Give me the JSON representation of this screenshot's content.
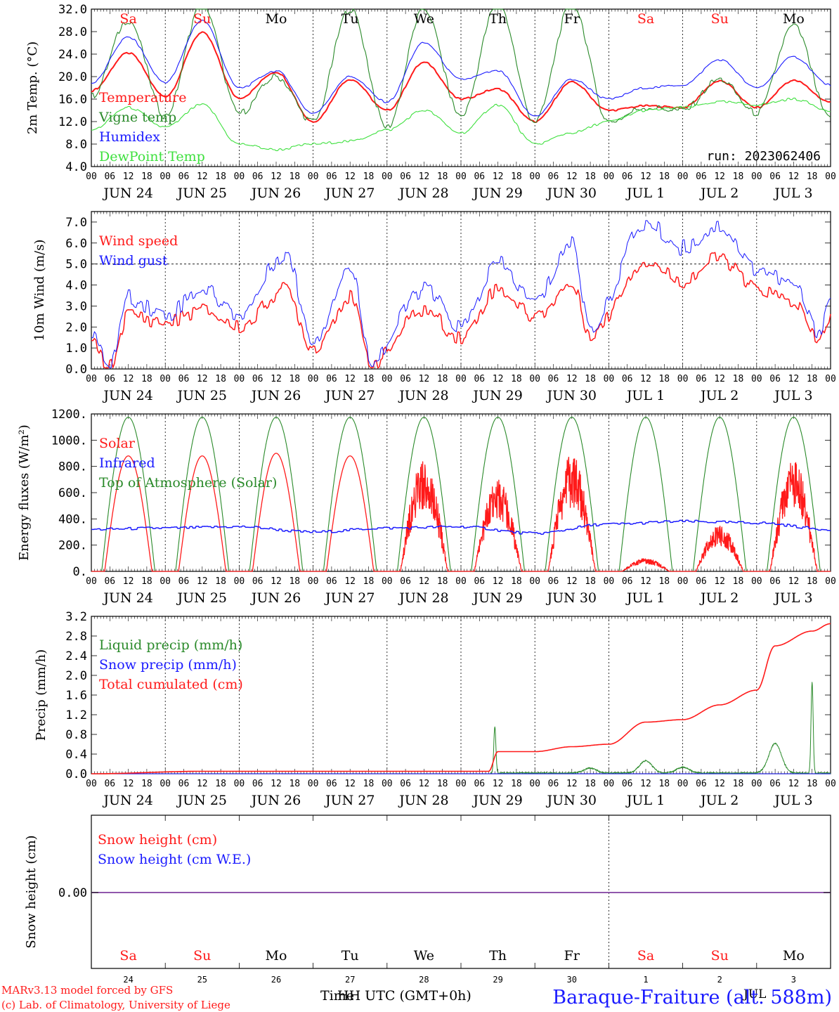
{
  "colors": {
    "red": "#ff1a1a",
    "green": "#2a8a2a",
    "blue": "#1a1aff",
    "lightgreen": "#3ee03e",
    "purple": "#8040a0",
    "axis": "#000000"
  },
  "x_axis": {
    "hour_labels": [
      "00",
      "06",
      "12",
      "18"
    ],
    "last_tick_label": "00",
    "date_labels": [
      "JUN 24",
      "JUN 25",
      "JUN 26",
      "JUN 27",
      "JUN 28",
      "JUN 29",
      "JUN 30",
      "JUL  1",
      "JUL  2",
      "JUL  3"
    ],
    "weekday_labels": [
      "Sa",
      "Su",
      "Mo",
      "Tu",
      "We",
      "Th",
      "Fr",
      "Sa",
      "Su",
      "Mo"
    ],
    "weekend_flags": [
      true,
      true,
      false,
      false,
      false,
      false,
      false,
      true,
      true,
      false
    ],
    "day_numbers": [
      "24",
      "25",
      "26",
      "27",
      "28",
      "29",
      "30",
      "1",
      "2",
      "3"
    ]
  },
  "footer": {
    "credit_line1": "MARv3.13 model forced by GFS",
    "credit_line2": "(c) Lab. of Climatology, University of Liege",
    "time_label": "Time",
    "utc_label": "HH UTC (GMT+0h)",
    "jul_label": "JUL",
    "station": "Baraque-Fraiture (alt. 588m)"
  },
  "chart_data": [
    {
      "type": "line",
      "ylabel": "2m Temp. (°C)",
      "ylim": [
        4,
        32
      ],
      "yticks": [
        "4.0",
        "8.0",
        "12.0",
        "16.0",
        "20.0",
        "24.0",
        "28.0",
        "32.0"
      ],
      "run_label": "run: 2023062406",
      "x": [
        "06-24 00",
        "06-24 12",
        "06-25 00",
        "06-25 12",
        "06-26 00",
        "06-26 12",
        "06-27 00",
        "06-27 12",
        "06-28 00",
        "06-28 12",
        "06-29 00",
        "06-29 12",
        "06-30 00",
        "06-30 12",
        "07-01 00",
        "07-01 12",
        "07-02 00",
        "07-02 12",
        "07-03 00",
        "07-03 12",
        "07-04 00"
      ],
      "series": [
        {
          "name": "Temperature",
          "color": "red",
          "values": [
            17.5,
            24.2,
            16.5,
            27.8,
            16.2,
            20.8,
            12.0,
            19.5,
            14.0,
            22.5,
            16.0,
            17.8,
            12.0,
            19.0,
            14.0,
            14.8,
            14.5,
            19.2,
            14.5,
            19.3,
            15.5
          ]
        },
        {
          "name": "Vigne temp",
          "color": "green",
          "values": [
            16.5,
            30.0,
            13.0,
            33.0,
            13.5,
            20.0,
            12.0,
            32.0,
            11.0,
            32.0,
            13.0,
            33.0,
            12.0,
            33.0,
            12.0,
            14.5,
            14.0,
            19.5,
            13.5,
            29.0,
            12.5
          ]
        },
        {
          "name": "Humidex",
          "color": "blue",
          "values": [
            18.8,
            27.0,
            19.0,
            30.0,
            18.0,
            21.0,
            13.5,
            20.0,
            15.5,
            26.0,
            19.5,
            21.0,
            13.0,
            19.5,
            16.0,
            18.0,
            18.5,
            23.0,
            18.0,
            23.5,
            18.5
          ]
        },
        {
          "name": "DewPoint Temp",
          "color": "lightgreen",
          "values": [
            10.5,
            14.5,
            11.0,
            15.0,
            8.0,
            7.0,
            8.0,
            8.5,
            10.5,
            14.0,
            10.0,
            15.0,
            8.0,
            10.0,
            12.0,
            14.0,
            14.5,
            15.5,
            15.0,
            16.0,
            14.0
          ]
        }
      ]
    },
    {
      "type": "line",
      "ylabel": "10m Wind (m/s)",
      "ylim": [
        0,
        7.5
      ],
      "yticks": [
        "0.0",
        "1.0",
        "2.0",
        "3.0",
        "4.0",
        "5.0",
        "6.0",
        "7.0"
      ],
      "ref_line": 5.0,
      "x": [
        "06-24 00",
        "06-24 06",
        "06-24 12",
        "06-25 00",
        "06-25 12",
        "06-26 00",
        "06-26 15",
        "06-27 00",
        "06-27 12",
        "06-27 19",
        "06-28 12",
        "06-29 00",
        "06-29 12",
        "06-30 00",
        "06-30 12",
        "06-30 18",
        "07-01 12",
        "07-02 00",
        "07-02 12",
        "07-03 00",
        "07-03 12",
        "07-03 20",
        "07-04 00"
      ],
      "series": [
        {
          "name": "Wind speed",
          "color": "red",
          "values": [
            1.2,
            0.1,
            2.6,
            2.2,
            2.8,
            2.0,
            3.8,
            1.0,
            3.4,
            0.3,
            2.8,
            1.5,
            3.8,
            2.5,
            4.0,
            1.7,
            5.1,
            4.2,
            5.3,
            3.8,
            3.2,
            1.3,
            2.5
          ]
        },
        {
          "name": "Wind gust",
          "color": "blue",
          "values": [
            1.5,
            0.2,
            3.4,
            2.6,
            3.8,
            2.6,
            5.5,
            1.4,
            4.8,
            0.5,
            3.8,
            2.0,
            5.0,
            3.2,
            6.0,
            2.0,
            6.9,
            5.8,
            6.8,
            4.8,
            4.0,
            1.8,
            3.4
          ]
        }
      ]
    },
    {
      "type": "line",
      "ylabel": "Energy fluxes (W/m²)",
      "ylim": [
        0,
        1200
      ],
      "yticks": [
        "0.",
        "200.",
        "400.",
        "600.",
        "800.",
        "1000.",
        "1200."
      ],
      "series": [
        {
          "name": "Solar",
          "color": "red",
          "peaks": [
            880,
            880,
            900,
            880,
            860,
            700,
            890,
            100,
            350,
            850
          ]
        },
        {
          "name": "Infrared",
          "color": "blue",
          "x": [
            "06-24 00",
            "06-25 00",
            "06-26 00",
            "06-27 00",
            "06-28 00",
            "06-29 00",
            "06-30 00",
            "07-01 00",
            "07-02 00",
            "07-03 00",
            "07-04 00"
          ],
          "values": [
            320,
            330,
            340,
            300,
            330,
            340,
            290,
            360,
            380,
            370,
            320
          ]
        },
        {
          "name": "Top of Atmosphere (Solar)",
          "color": "green",
          "peaks": [
            1175,
            1175,
            1175,
            1175,
            1175,
            1175,
            1175,
            1175,
            1175,
            1175
          ]
        }
      ]
    },
    {
      "type": "line",
      "ylabel": "Precip (mm/h)",
      "ylim": [
        0,
        3.2
      ],
      "yticks": [
        "0.0",
        "0.4",
        "0.8",
        "1.2",
        "1.6",
        "2.0",
        "2.4",
        "2.8",
        "3.2"
      ],
      "series": [
        {
          "name": "Liquid precip (mm/h)",
          "color": "green",
          "x": [
            "06-29 10",
            "06-29 11",
            "06-30 18",
            "07-01 06",
            "07-01 12",
            "07-02 00",
            "07-03 06",
            "07-03 18"
          ],
          "values": [
            0.0,
            0.95,
            0.1,
            0.0,
            0.25,
            0.12,
            0.6,
            1.85
          ]
        },
        {
          "name": "Snow precip (mm/h)",
          "color": "blue",
          "values": [
            0.0
          ]
        },
        {
          "name": "Total cumulated (cm)",
          "color": "red",
          "x": [
            "06-24 00",
            "06-25 12",
            "06-29 09",
            "06-29 12",
            "06-30 00",
            "06-30 12",
            "07-01 00",
            "07-01 12",
            "07-02 00",
            "07-02 12",
            "07-03 00",
            "07-03 06",
            "07-03 18",
            "07-04 00"
          ],
          "values": [
            0.0,
            0.05,
            0.05,
            0.45,
            0.45,
            0.55,
            0.6,
            1.05,
            1.1,
            1.4,
            1.7,
            2.6,
            2.9,
            3.05
          ]
        }
      ]
    },
    {
      "type": "line",
      "ylabel": "Snow height (cm)",
      "ytick": "0.00",
      "series": [
        {
          "name": "Snow height (cm)",
          "color": "red",
          "values": [
            0.0
          ]
        },
        {
          "name": "Snow height (cm W.E.)",
          "color": "blue",
          "values": [
            0.0
          ]
        }
      ]
    }
  ]
}
